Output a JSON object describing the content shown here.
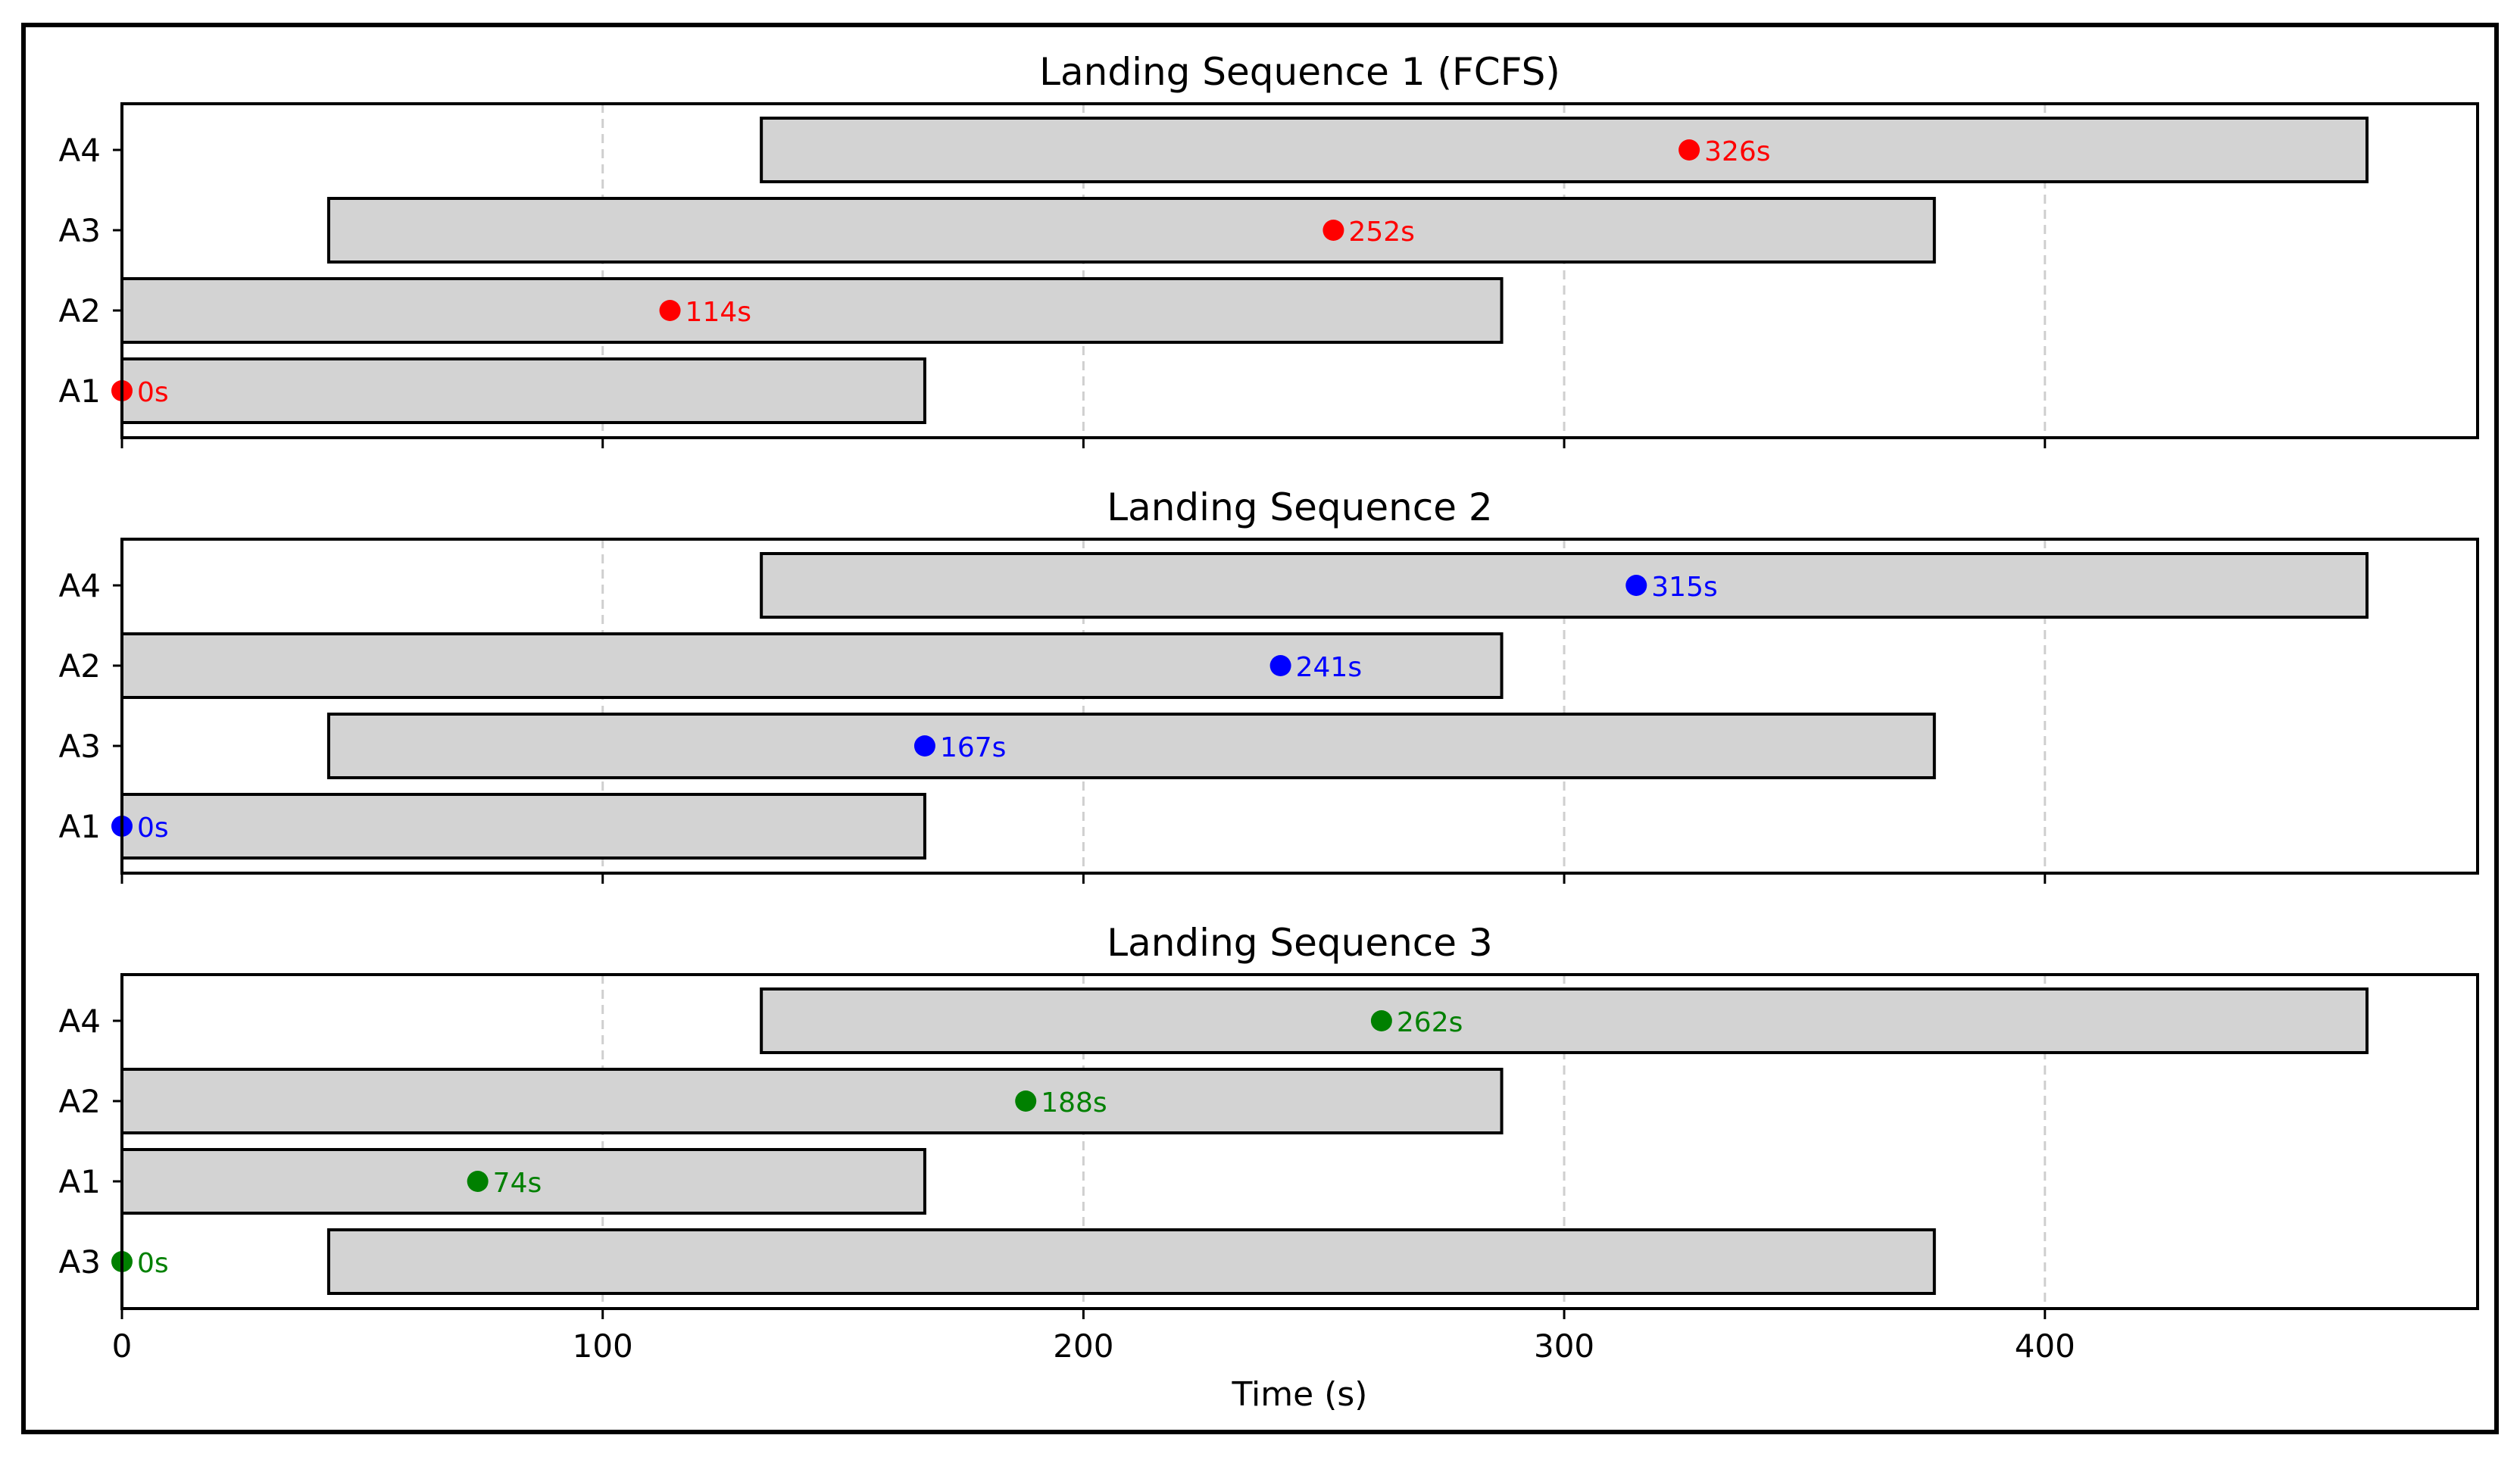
{
  "chart_data": {
    "type": "gantt",
    "xlabel": "Time (s)",
    "xlim": [
      0,
      490
    ],
    "x_ticks": [
      0,
      100,
      200,
      300,
      400
    ],
    "grid": "vertical dashed",
    "windows": {
      "A1": [
        0,
        167
      ],
      "A2": [
        0,
        287
      ],
      "A3": [
        43,
        377
      ],
      "A4": [
        133,
        467
      ]
    },
    "panels": [
      {
        "title": "Landing Sequence 1 (FCFS)",
        "color": "#ff0000",
        "rows": [
          "A1",
          "A2",
          "A3",
          "A4"
        ],
        "landings": [
          {
            "aircraft": "A1",
            "time": 0,
            "label": "0s"
          },
          {
            "aircraft": "A2",
            "time": 114,
            "label": "114s"
          },
          {
            "aircraft": "A3",
            "time": 252,
            "label": "252s"
          },
          {
            "aircraft": "A4",
            "time": 326,
            "label": "326s"
          }
        ]
      },
      {
        "title": "Landing Sequence 2",
        "color": "#0000ff",
        "rows": [
          "A1",
          "A3",
          "A2",
          "A4"
        ],
        "landings": [
          {
            "aircraft": "A1",
            "time": 0,
            "label": "0s"
          },
          {
            "aircraft": "A3",
            "time": 167,
            "label": "167s"
          },
          {
            "aircraft": "A2",
            "time": 241,
            "label": "241s"
          },
          {
            "aircraft": "A4",
            "time": 315,
            "label": "315s"
          }
        ]
      },
      {
        "title": "Landing Sequence 3",
        "color": "#008000",
        "rows": [
          "A3",
          "A1",
          "A2",
          "A4"
        ],
        "landings": [
          {
            "aircraft": "A3",
            "time": 0,
            "label": "0s"
          },
          {
            "aircraft": "A1",
            "time": 74,
            "label": "74s"
          },
          {
            "aircraft": "A2",
            "time": 188,
            "label": "188s"
          },
          {
            "aircraft": "A4",
            "time": 262,
            "label": "262s"
          }
        ]
      }
    ]
  }
}
